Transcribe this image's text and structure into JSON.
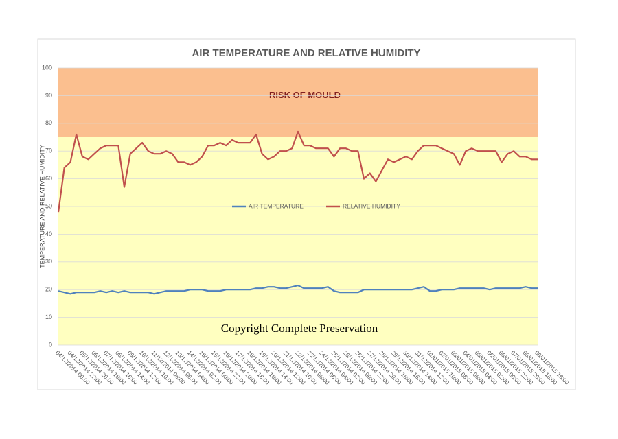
{
  "chart_data": {
    "type": "line",
    "title": "AIR TEMPERATURE AND RELATIVE HUMIDITY",
    "y_label": "TEMPERATURE  AND RELATIVE HUMIDITY",
    "annotation": "Copyright Complete Preservation",
    "zones": [
      {
        "from": 75,
        "to": 100,
        "color": "#fbbf8f",
        "label": "RISK OF MOULD"
      },
      {
        "from": 0,
        "to": 75,
        "color": "#ffffc0"
      }
    ],
    "ylim": [
      0,
      100
    ],
    "yticks": [
      0,
      10,
      20,
      30,
      40,
      50,
      60,
      70,
      80,
      90,
      100
    ],
    "grid": true,
    "legend": "center",
    "categories": [
      "04/12/2014 00:00",
      null,
      "04/12/2014 22:00",
      null,
      "05/12/2014 20:00",
      null,
      "06/12/2014 18:00",
      null,
      "07/12/2014 16:00",
      null,
      "08/12/2014 14:00",
      null,
      "09/12/2014 12:00",
      null,
      "10/12/2014 10:00",
      null,
      "11/12/2014 08:00",
      null,
      "12/12/2014 06:00",
      null,
      "13/12/2014 04:00",
      null,
      "14/12/2014 02:00",
      null,
      "15/12/2014 00:00",
      null,
      "15/12/2014 22:00",
      null,
      "16/12/2014 20:00",
      null,
      "17/12/2014 18:00",
      null,
      "18/12/2014 16:00",
      null,
      "19/12/2014 14:00",
      null,
      "20/12/2014 12:00",
      null,
      "21/12/2014 10:00",
      null,
      "22/12/2014 08:00",
      null,
      "23/12/2014 06:00",
      null,
      "24/12/2014 04:00",
      null,
      "25/12/2014 02:00",
      null,
      "26/12/2014 00:00",
      null,
      "26/12/2014 22:00",
      null,
      "27/12/2014 20:00",
      null,
      "28/12/2014 18:00",
      null,
      "29/12/2014 16:00",
      null,
      "30/12/2014 14:00",
      null,
      "31/12/2014 12:00",
      null,
      "01/01/2015 10:00",
      null,
      "02/01/2015 08:00",
      null,
      "03/01/2015 06:00",
      null,
      "04/01/2015 04:00",
      null,
      "05/01/2015 02:00",
      null,
      "06/01/2015 00:00",
      null,
      "06/01/2015 22:00",
      null,
      "07/01/2015 20:00",
      null,
      "08/01/2015 18:00",
      null,
      "09/01/2015 16:00"
    ],
    "series": [
      {
        "name": "AIR TEMPERATURE",
        "color": "#4f81bd",
        "values": [
          19.5,
          19,
          18.5,
          19,
          19,
          19,
          19,
          19.5,
          19,
          19.5,
          19,
          19.5,
          19,
          19,
          19,
          19,
          18.5,
          19,
          19.5,
          19.5,
          19.5,
          19.5,
          20,
          20,
          20,
          19.5,
          19.5,
          19.5,
          20,
          20,
          20,
          20,
          20,
          20.5,
          20.5,
          21,
          21,
          20.5,
          20.5,
          21,
          21.5,
          20.5,
          20.5,
          20.5,
          20.5,
          21,
          19.5,
          19,
          19,
          19,
          19,
          20,
          20,
          20,
          20,
          20,
          20,
          20,
          20,
          20,
          20.5,
          21,
          19.5,
          19.5,
          20,
          20,
          20,
          20.5,
          20.5,
          20.5,
          20.5,
          20.5,
          20,
          20.5,
          20.5,
          20.5,
          20.5,
          20.5,
          21,
          20.5,
          20.5
        ]
      },
      {
        "name": "RELATIVE HUMIDITY",
        "color": "#c0504d",
        "values": [
          48,
          64,
          66,
          76,
          68,
          67,
          69,
          71,
          72,
          72,
          72,
          57,
          69,
          71,
          73,
          70,
          69,
          69,
          70,
          69,
          66,
          66,
          65,
          66,
          68,
          72,
          72,
          73,
          72,
          74,
          73,
          73,
          73,
          76,
          69,
          67,
          68,
          70,
          70,
          71,
          77,
          72,
          72,
          71,
          71,
          71,
          68,
          71,
          71,
          70,
          70,
          60,
          62,
          59,
          63,
          67,
          66,
          67,
          68,
          67,
          70,
          72,
          72,
          72,
          71,
          70,
          69,
          65,
          70,
          71,
          70,
          70,
          70,
          70,
          66,
          69,
          70,
          68,
          68,
          67,
          67
        ]
      }
    ]
  }
}
